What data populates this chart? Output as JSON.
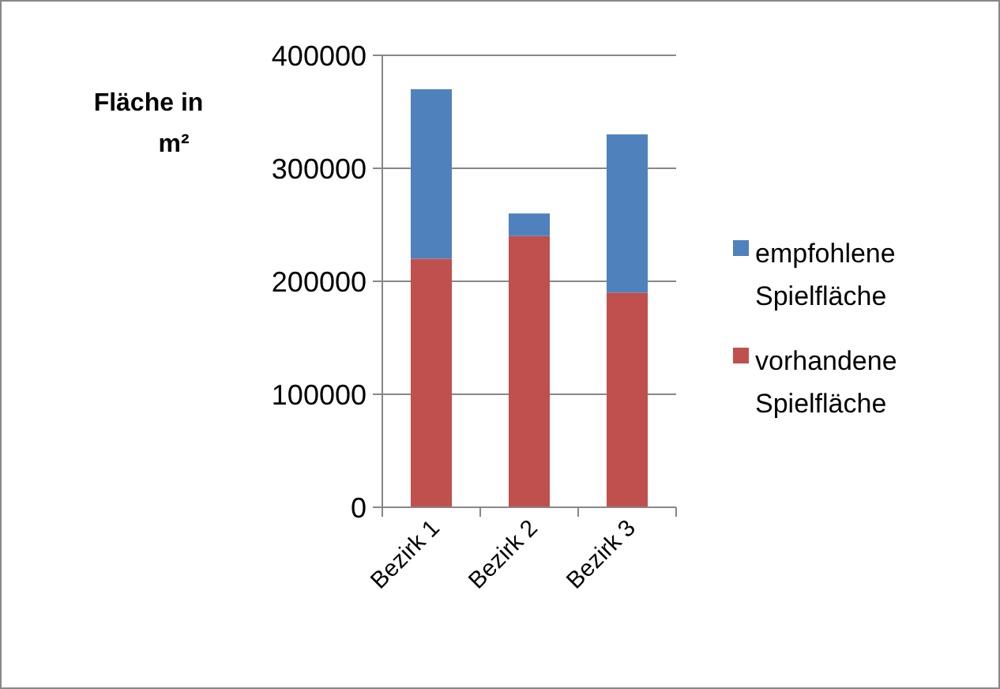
{
  "chart_data": {
    "type": "bar",
    "stacked": true,
    "ylabel": "Fläche in m²",
    "categories": [
      "Bezirk 1",
      "Bezirk 2",
      "Bezirk 3"
    ],
    "series": [
      {
        "name": "vorhandene Spielfläche",
        "color": "#c0504d",
        "values": [
          220000,
          240000,
          190000
        ]
      },
      {
        "name": "empfohlene Spielfläche",
        "color": "#4f81bd",
        "values": [
          150000,
          20000,
          140000
        ]
      }
    ],
    "ylim": [
      0,
      400000
    ],
    "yticks": [
      0,
      100000,
      200000,
      300000,
      400000
    ],
    "grid": "y",
    "legend": "right"
  }
}
